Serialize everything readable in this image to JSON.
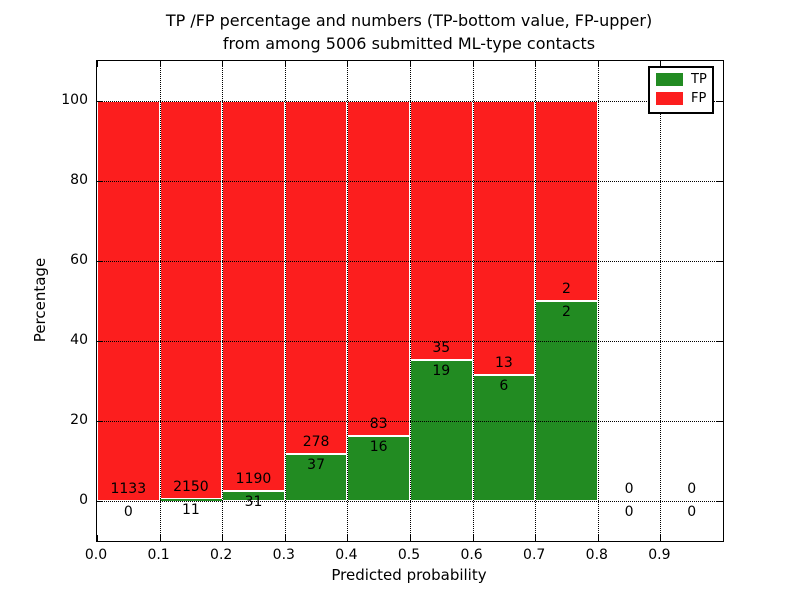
{
  "title": {
    "line1": "TP /FP percentage and numbers (TP-bottom value, FP-upper)",
    "line2": "from among 5006 submitted ML-type contacts"
  },
  "chart_data": {
    "type": "bar",
    "stacked": true,
    "normalized_to_percent": true,
    "title": "TP /FP percentage and numbers (TP-bottom value, FP-upper) from among 5006 submitted ML-type contacts",
    "xlabel": "Predicted probability",
    "ylabel": "Percentage",
    "bins": [
      "0.0-0.1",
      "0.1-0.2",
      "0.2-0.3",
      "0.3-0.4",
      "0.4-0.5",
      "0.5-0.6",
      "0.6-0.7",
      "0.7-0.8",
      "0.8-0.9",
      "0.9-1.0"
    ],
    "series": [
      {
        "name": "TP",
        "color": "#228b22",
        "counts": [
          0,
          11,
          31,
          37,
          16,
          19,
          6,
          2,
          0,
          0
        ]
      },
      {
        "name": "FP",
        "color": "#fc1e1e",
        "counts": [
          1133,
          2150,
          1190,
          278,
          83,
          35,
          13,
          2,
          0,
          0
        ]
      }
    ],
    "total_contacts": 5006,
    "xticks": [
      "0.0",
      "0.1",
      "0.2",
      "0.3",
      "0.4",
      "0.5",
      "0.6",
      "0.7",
      "0.8",
      "0.9"
    ],
    "yticks": [
      0,
      20,
      40,
      60,
      80,
      100
    ],
    "xlim": [
      0.0,
      1.0
    ],
    "ylim": [
      -10,
      110
    ],
    "grid": "dotted",
    "legend_position": "upper right",
    "bar_edge_color": "#ffffff"
  }
}
